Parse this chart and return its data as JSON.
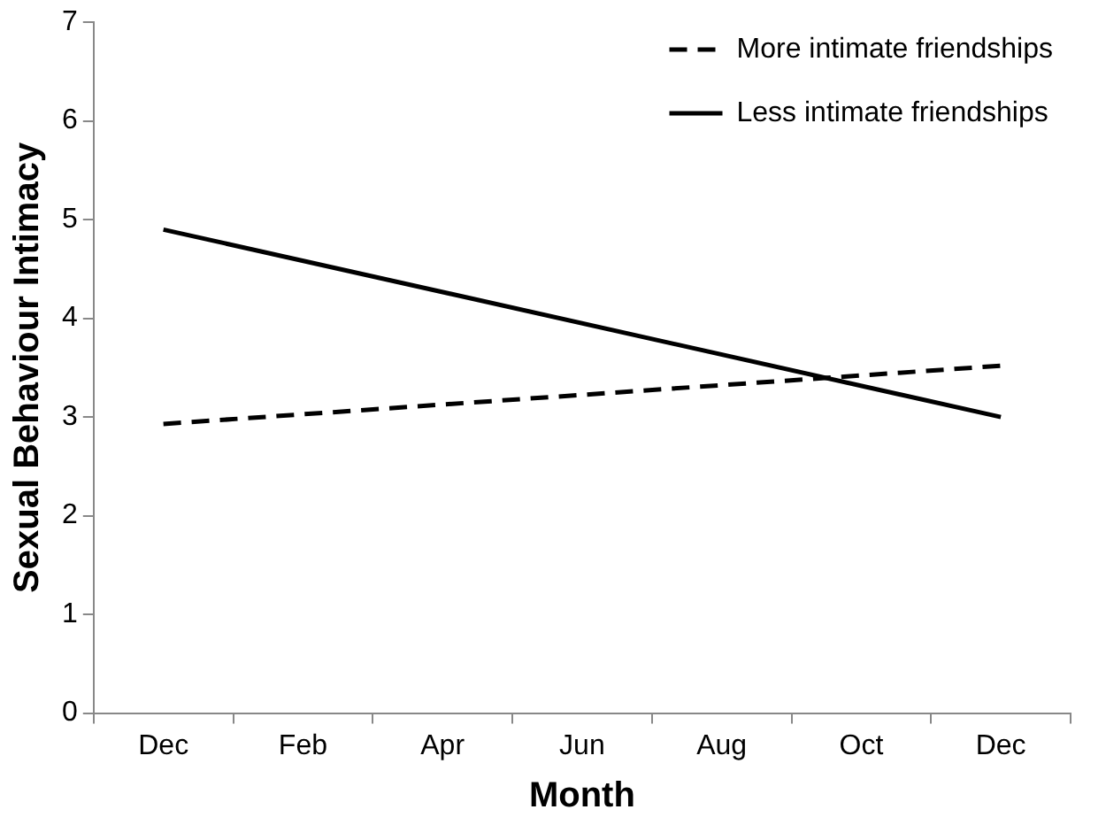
{
  "chart_data": {
    "type": "line",
    "xlabel": "Month",
    "ylabel": "Sexual Behaviour Intimacy",
    "categories": [
      "Dec",
      "Feb",
      "Apr",
      "Jun",
      "Aug",
      "Oct",
      "Dec"
    ],
    "series": [
      {
        "name": "More intimate friendships",
        "color": "#000000",
        "line_style": "dashed",
        "values": [
          2.93,
          null,
          null,
          null,
          null,
          null,
          3.52
        ]
      },
      {
        "name": "Less intimate friendships",
        "color": "#000000",
        "line_style": "solid",
        "values": [
          4.9,
          null,
          null,
          null,
          null,
          null,
          3.0
        ]
      }
    ],
    "ylim": [
      0,
      7
    ],
    "yticks": [
      0,
      1,
      2,
      3,
      4,
      5,
      6,
      7
    ],
    "grid": false,
    "legend": "top right",
    "marker": "none"
  }
}
